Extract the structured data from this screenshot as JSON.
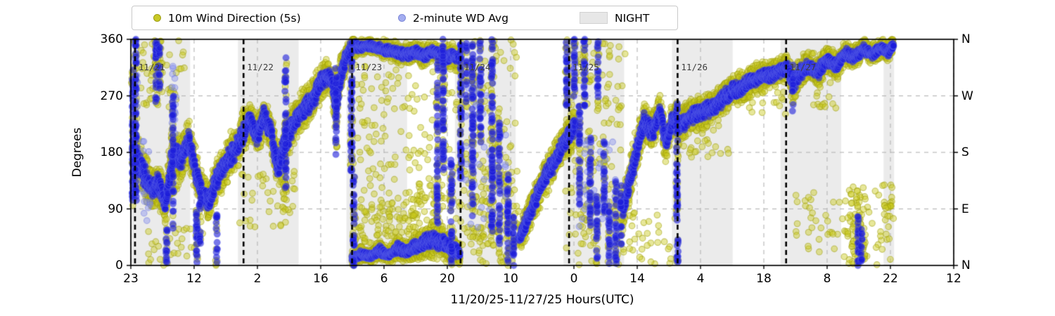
{
  "labels": {
    "xlabel": "11/20/25-11/27/25  Hours(UTC)",
    "ylabel": "Degrees"
  },
  "legend": {
    "items": [
      {
        "label": "10m Wind Direction (5s)",
        "marker": "dot",
        "color": "#c9c926",
        "edge": "#9e9e14"
      },
      {
        "label": "2-minute WD Avg",
        "marker": "dot",
        "color": "#a3adf0",
        "edge": "#7d88d8"
      },
      {
        "label": "NIGHT",
        "marker": "rect",
        "color": "#e7e7e7",
        "edge": "#d2d2d2"
      }
    ]
  },
  "chart_data": {
    "type": "scatter",
    "xlabel": "11/20/25-11/27/25  Hours(UTC)",
    "ylabel": "Degrees",
    "x_axis_hours_span": [
      0,
      182
    ],
    "x_ticks": {
      "hours": [
        0,
        14,
        28,
        42,
        56,
        70,
        84,
        98,
        112,
        126,
        140,
        154,
        168,
        182
      ],
      "labels": [
        "23",
        "12",
        "2",
        "16",
        "6",
        "20",
        "10",
        "0",
        "14",
        "4",
        "18",
        "8",
        "22",
        "12"
      ]
    },
    "y_ticks": {
      "values": [
        0,
        90,
        180,
        270,
        360
      ],
      "left_labels": [
        "0",
        "90",
        "180",
        "270",
        "360"
      ],
      "right_labels": [
        "N",
        "E",
        "S",
        "W",
        "N"
      ],
      "gridline_values": [
        90,
        180,
        270
      ]
    },
    "night_bands_hours": [
      [
        0,
        13.1
      ],
      [
        23.7,
        37.1
      ],
      [
        47.7,
        61.1
      ],
      [
        71.7,
        85.1
      ],
      [
        95.7,
        109.1
      ],
      [
        119.7,
        133.1
      ],
      [
        143.7,
        157.1
      ],
      [
        166.5,
        168.8
      ]
    ],
    "day_lines": {
      "hours": [
        0.93,
        24.93,
        48.93,
        72.93,
        96.93,
        120.93,
        144.93
      ],
      "labels": [
        "11/21",
        "11/22",
        "11/23",
        "11/24",
        "11/25",
        "11/26",
        "11/27"
      ]
    },
    "series": [
      {
        "name": "10m Wind Direction (5s)",
        "color": "rgba(202,202,28,0.45)",
        "edge": "rgba(158,158,12,0.55)",
        "radius": 4.3,
        "step_hours": 0.045,
        "per_step": 2,
        "spread_scale": 1.0
      },
      {
        "name": "2-minute WD Avg",
        "color": "rgba(28,28,218,0.60)",
        "edge": "rgba(100,110,235,0.35)",
        "radius": 4.7,
        "step_hours": 0.0333,
        "per_step": 1,
        "spread_scale": 0.45
      }
    ],
    "trend_segments_u_deg_spread": [
      {
        "pts": [
          [
            0.3,
            185,
            40
          ],
          [
            1.4,
            165,
            55
          ],
          [
            3,
            145,
            45
          ],
          [
            4.6,
            118,
            35
          ],
          [
            6.1,
            132,
            42
          ],
          [
            7.7,
            95,
            35
          ],
          [
            9.2,
            175,
            65
          ],
          [
            11.2,
            168,
            40
          ],
          [
            12.8,
            198,
            45
          ],
          [
            14.4,
            148,
            42
          ],
          [
            15.9,
            115,
            35
          ],
          [
            17.2,
            100,
            32
          ],
          [
            18.5,
            130,
            38
          ],
          [
            20.9,
            163,
            40
          ],
          [
            23.5,
            190,
            42
          ],
          [
            24.9,
            212,
            40
          ],
          [
            26.3,
            232,
            35
          ],
          [
            27.9,
            205,
            35
          ],
          [
            29.4,
            238,
            35
          ],
          [
            31,
            212,
            35
          ],
          [
            32.6,
            152,
            45
          ],
          [
            34.1,
            198,
            48
          ],
          [
            35.7,
            222,
            40
          ],
          [
            37.5,
            242,
            38
          ],
          [
            39.5,
            258,
            38
          ],
          [
            40.6,
            268,
            40
          ],
          [
            41.9,
            292,
            35
          ],
          [
            43.4,
            302,
            30
          ],
          [
            44.4,
            298,
            30
          ],
          [
            45.3,
            252,
            55
          ],
          [
            46.5,
            305,
            38
          ],
          [
            47.6,
            330,
            30
          ],
          [
            48.6,
            345,
            25
          ]
        ]
      },
      {
        "pts": [
          [
            48.9,
            350,
            20
          ],
          [
            51,
            348,
            16
          ],
          [
            53,
            350,
            14
          ],
          [
            55,
            346,
            16
          ],
          [
            57,
            342,
            18
          ],
          [
            59,
            338,
            20
          ],
          [
            61,
            336,
            20
          ],
          [
            63,
            340,
            18
          ],
          [
            65,
            334,
            22
          ],
          [
            66.8,
            342,
            16
          ],
          [
            68,
            338,
            18
          ],
          [
            69.5,
            330,
            25
          ],
          [
            71,
            335,
            20
          ],
          [
            72.5,
            330,
            22
          ]
        ]
      },
      {
        "pts": [
          [
            48.9,
            12,
            14
          ],
          [
            51,
            18,
            15
          ],
          [
            53,
            14,
            12
          ],
          [
            55,
            24,
            18
          ],
          [
            57,
            16,
            13
          ],
          [
            59,
            28,
            22
          ],
          [
            61,
            22,
            18
          ],
          [
            63,
            30,
            25
          ],
          [
            65,
            38,
            30
          ],
          [
            67,
            42,
            32
          ],
          [
            69,
            35,
            30
          ],
          [
            71,
            28,
            26
          ],
          [
            72.8,
            18,
            22
          ]
        ]
      },
      {
        "pts": [
          [
            85.8,
            42,
            25
          ],
          [
            87.5,
            70,
            30
          ],
          [
            89.5,
            105,
            34
          ],
          [
            91.5,
            138,
            34
          ],
          [
            93.5,
            163,
            34
          ],
          [
            95.5,
            192,
            34
          ],
          [
            97.3,
            210,
            34
          ],
          [
            98.3,
            225,
            35
          ]
        ]
      },
      {
        "pts": [
          [
            108.8,
            85,
            38
          ],
          [
            110.5,
            138,
            42
          ],
          [
            112,
            188,
            40
          ],
          [
            113.5,
            228,
            35
          ],
          [
            115.5,
            212,
            35
          ],
          [
            117,
            248,
            30
          ],
          [
            118.3,
            192,
            38
          ],
          [
            119.6,
            228,
            30
          ],
          [
            120.8,
            235,
            30
          ]
        ]
      },
      {
        "pts": [
          [
            121,
            222,
            34
          ],
          [
            123,
            232,
            32
          ],
          [
            125,
            240,
            30
          ],
          [
            127,
            247,
            30
          ],
          [
            129,
            254,
            30
          ],
          [
            131,
            266,
            30
          ],
          [
            133,
            278,
            30
          ],
          [
            135,
            283,
            28
          ],
          [
            137,
            293,
            28
          ],
          [
            139,
            299,
            28
          ],
          [
            141,
            303,
            26
          ],
          [
            143,
            308,
            25
          ],
          [
            145,
            315,
            24
          ]
        ]
      },
      {
        "pts": [
          [
            145,
            317,
            22
          ],
          [
            146.5,
            290,
            32
          ],
          [
            148,
            308,
            28
          ],
          [
            150,
            318,
            25
          ],
          [
            152,
            308,
            28
          ],
          [
            154,
            328,
            22
          ],
          [
            156,
            318,
            25
          ],
          [
            158,
            338,
            20
          ],
          [
            160,
            330,
            22
          ],
          [
            162,
            345,
            18
          ],
          [
            164,
            336,
            20
          ],
          [
            166,
            347,
            16
          ],
          [
            167.5,
            340,
            18
          ],
          [
            168.7,
            350,
            14
          ]
        ]
      }
    ],
    "gust_columns_u_lo_hi": [
      [
        0.45,
        95,
        320,
        1
      ],
      [
        1.1,
        100,
        360,
        1
      ],
      [
        5.6,
        255,
        360,
        1
      ],
      [
        6.3,
        270,
        355,
        0.8
      ],
      [
        7.9,
        0,
        60,
        1
      ],
      [
        9.3,
        60,
        280,
        0.8
      ],
      [
        14.6,
        0,
        95,
        1
      ],
      [
        15.3,
        30,
        120,
        0.7
      ],
      [
        19,
        0,
        80,
        0.8
      ],
      [
        34.2,
        120,
        330,
        0.8
      ],
      [
        45.4,
        170,
        310,
        0.8
      ],
      [
        48.8,
        145,
        360,
        1
      ],
      [
        49.3,
        0,
        150,
        1
      ],
      [
        67.8,
        60,
        330,
        0.7
      ],
      [
        69.1,
        150,
        360,
        1
      ],
      [
        70.9,
        0,
        165,
        1
      ],
      [
        73.0,
        140,
        360,
        1
      ],
      [
        74.2,
        250,
        360,
        0.6
      ],
      [
        75.6,
        85,
        355,
        1
      ],
      [
        77.3,
        195,
        360,
        0.9
      ],
      [
        79.9,
        50,
        360,
        1
      ],
      [
        81.5,
        30,
        230,
        0.8
      ],
      [
        83.4,
        0,
        150,
        1
      ],
      [
        84.6,
        0,
        90,
        0.9
      ],
      [
        96.4,
        250,
        360,
        1
      ],
      [
        98.1,
        265,
        360,
        1
      ],
      [
        99.2,
        95,
        255,
        0.9
      ],
      [
        100.3,
        250,
        360,
        1
      ],
      [
        101.6,
        55,
        205,
        0.9
      ],
      [
        103.1,
        0,
        110,
        0.9
      ],
      [
        103.3,
        245,
        360,
        0.7
      ],
      [
        104.7,
        85,
        205,
        0.9
      ],
      [
        105.8,
        0,
        95,
        1
      ],
      [
        107.3,
        0,
        135,
        0.9
      ],
      [
        108.4,
        25,
        125,
        0.8
      ],
      [
        120.8,
        75,
        255,
        1
      ],
      [
        120.95,
        0,
        48,
        1
      ],
      [
        146.4,
        250,
        330,
        0.5
      ],
      [
        160.9,
        0,
        85,
        1
      ],
      [
        161.6,
        0,
        70,
        0.8
      ]
    ],
    "scatter_patches_u0_u1_lo_hi_n_color": [
      [
        2,
        12,
        250,
        360,
        45,
        "y"
      ],
      [
        4.5,
        7,
        300,
        360,
        22,
        "y"
      ],
      [
        3,
        16,
        0,
        60,
        28,
        "y"
      ],
      [
        24,
        37,
        60,
        150,
        35,
        "y"
      ],
      [
        33.5,
        34.8,
        85,
        135,
        18,
        "y"
      ],
      [
        49,
        68,
        60,
        320,
        130,
        "y"
      ],
      [
        49,
        61,
        30,
        100,
        70,
        "y"
      ],
      [
        61,
        69,
        30,
        130,
        60,
        "y"
      ],
      [
        68,
        86,
        30,
        360,
        160,
        "y"
      ],
      [
        75,
        84,
        0,
        60,
        40,
        "y"
      ],
      [
        77,
        85,
        40,
        160,
        50,
        "y"
      ],
      [
        96,
        109.5,
        0,
        360,
        150,
        "y"
      ],
      [
        109,
        120.5,
        0,
        95,
        32,
        "y"
      ],
      [
        121,
        133,
        170,
        230,
        28,
        "y"
      ],
      [
        133,
        145,
        240,
        280,
        20,
        "y"
      ],
      [
        147,
        168,
        0,
        120,
        60,
        "y"
      ],
      [
        158.5,
        162.5,
        0,
        130,
        70,
        "y"
      ],
      [
        166,
        168.7,
        40,
        130,
        25,
        "y"
      ],
      [
        151,
        157,
        250,
        300,
        18,
        "y"
      ],
      [
        0.5,
        1.5,
        250,
        330,
        12,
        "lb"
      ],
      [
        2.5,
        4.5,
        60,
        200,
        18,
        "lb"
      ],
      [
        73,
        84,
        60,
        300,
        40,
        "lb"
      ],
      [
        99,
        108,
        60,
        200,
        40,
        "lb"
      ],
      [
        9,
        10,
        210,
        320,
        14,
        "lb"
      ]
    ]
  },
  "style": {
    "night_fill": "rgba(181,181,181,0.27)",
    "grid_color": "#b4b4b4",
    "spine_color": "#000000",
    "day_line_color": "#000000",
    "light_blue": "rgba(130,140,240,0.42)"
  }
}
